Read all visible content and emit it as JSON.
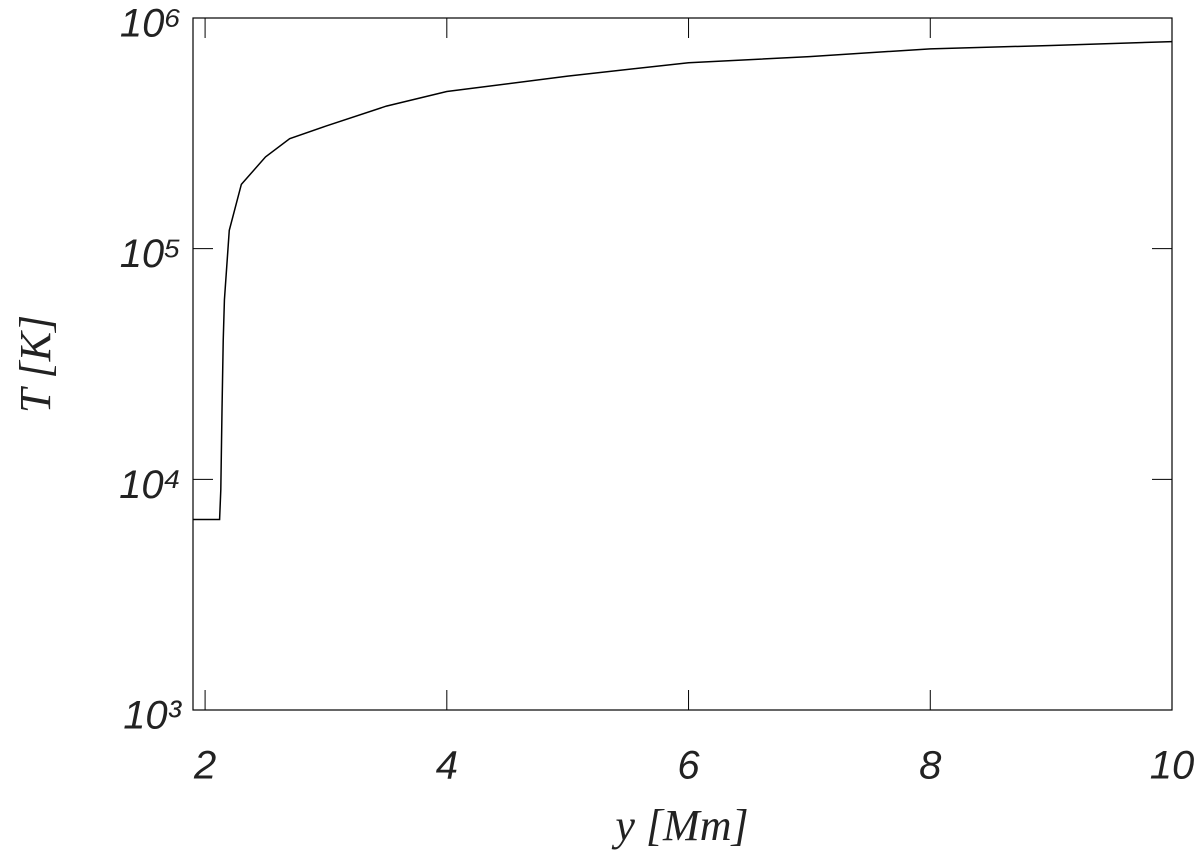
{
  "chart_data": {
    "type": "line",
    "x_label": "y [Mm]",
    "y_label": "T [K]",
    "log_y": true,
    "xlim": [
      1.9,
      10
    ],
    "xticks": [
      2,
      4,
      6,
      8,
      10
    ],
    "ylim": [
      1000,
      1000000
    ],
    "yticks": [
      {
        "value": 1000,
        "label": "10³"
      },
      {
        "value": 10000,
        "label": "10⁴"
      },
      {
        "value": 100000,
        "label": "10⁵"
      },
      {
        "value": 1000000,
        "label": "10⁶"
      }
    ],
    "series": [
      {
        "color": "#000000",
        "x": [
          1.9,
          2.12,
          2.13,
          2.14,
          2.15,
          2.16,
          2.2,
          2.3,
          2.5,
          2.7,
          3,
          3.5,
          4,
          5,
          6,
          7,
          8,
          9,
          10
        ],
        "values": [
          6700,
          6700,
          9000,
          20000,
          40000,
          60000,
          120000,
          190000,
          250000,
          300000,
          340000,
          415000,
          480000,
          560000,
          640000,
          680000,
          735000,
          760000,
          790000
        ]
      }
    ]
  }
}
